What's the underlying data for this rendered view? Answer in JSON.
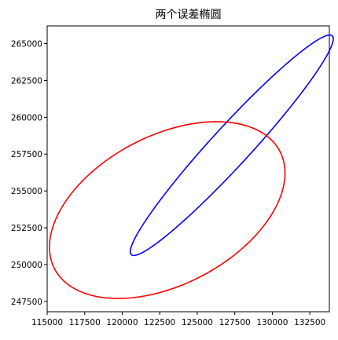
{
  "chart_data": {
    "type": "line",
    "title": "两个误差椭圆",
    "xlabel": "",
    "ylabel": "",
    "xlim": [
      115000,
      133800
    ],
    "ylim": [
      246800,
      266200
    ],
    "grid": false,
    "legend": "none",
    "x_ticks": [
      115000,
      117500,
      120000,
      122500,
      125000,
      127500,
      130000,
      132500
    ],
    "y_ticks": [
      247500,
      250000,
      252500,
      255000,
      257500,
      260000,
      262500,
      265000
    ],
    "x_tick_labels": [
      "115000",
      "117500",
      "120000",
      "122500",
      "125000",
      "127500",
      "130000",
      "132500"
    ],
    "y_tick_labels": [
      "247500",
      "250000",
      "252500",
      "255000",
      "257500",
      "260000",
      "262500",
      "265000"
    ],
    "series": [
      {
        "color": "#0000ff",
        "ellipse": {
          "center": [
            127300,
            258100
          ],
          "semi_major": 10000,
          "semi_minor": 1310,
          "rotation_deg": 48
        }
      },
      {
        "color": "#ff0000",
        "ellipse": {
          "center": [
            123000,
            253700
          ],
          "semi_major": 8500,
          "semi_minor": 5030,
          "rotation_deg": 28.5
        }
      }
    ]
  }
}
